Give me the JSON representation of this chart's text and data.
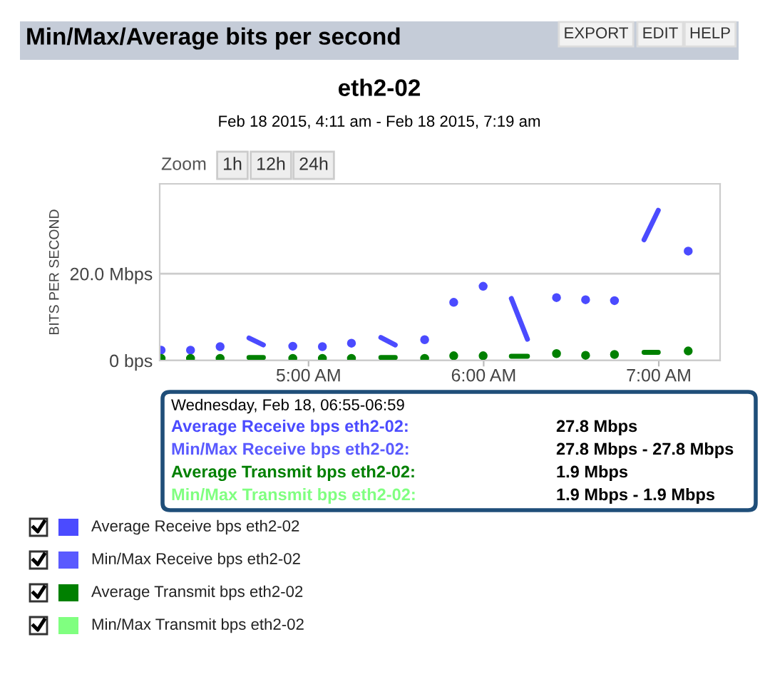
{
  "chart_data": {
    "type": "line",
    "title": "Min/Max/Average bits per second",
    "subtitle": "eth2-02",
    "ylabel": "BITS PER SECOND",
    "annotations": [
      "Feb 18 2015, 4:11 am - Feb 18 2015, 7:19 am",
      "Zoom",
      "1h",
      "12h",
      "24h",
      "EXPORT",
      "EDIT",
      "HELP",
      "Wednesday, Feb 18, 06:55-06:59",
      "Average Receive bps eth2-02:",
      "27.8 Mbps",
      "Min/Max Receive bps eth2-02:",
      "27.8 Mbps - 27.8 Mbps",
      "Average Transmit bps eth2-02:",
      "1.9 Mbps",
      "Min/Max Transmit bps eth2-02:",
      "1.9 Mbps - 1.9 Mbps"
    ],
    "x": [
      4.158,
      4.242,
      4.326,
      4.41,
      4.495,
      4.578,
      4.66,
      4.742,
      4.826,
      4.91,
      4.995,
      5.079,
      5.162,
      5.245,
      5.329,
      5.413,
      5.495,
      5.579,
      5.663,
      5.746,
      5.829,
      5.913,
      5.997,
      6.077,
      6.158,
      6.25,
      6.333,
      6.416,
      6.499,
      6.582,
      6.665,
      6.747,
      6.832,
      6.916,
      6.997,
      7.082,
      7.168
    ],
    "series": [
      {
        "name": "Average Receive bps eth2-02",
        "color": "#4b4bff",
        "values": [
          2.4,
          null,
          2.4,
          null,
          3.2,
          null,
          5.2,
          3.6,
          null,
          3.3,
          null,
          3.2,
          null,
          4.0,
          null,
          5.3,
          3.6,
          null,
          4.8,
          null,
          13.4,
          null,
          17.1,
          null,
          14.3,
          4.9,
          null,
          14.5,
          null,
          14.0,
          null,
          13.8,
          null,
          27.8,
          34.6,
          null,
          25.2
        ]
      },
      {
        "name": "Min/Max Receive bps eth2-02",
        "color": "#5a5aff",
        "values": [
          null,
          null,
          null,
          null,
          null,
          null,
          null,
          null,
          null,
          null,
          null,
          null,
          null,
          null,
          null,
          null,
          null,
          null,
          null,
          null,
          null,
          null,
          null,
          null,
          null,
          null,
          null,
          null,
          null,
          null,
          null,
          null,
          null,
          null,
          null,
          null,
          null
        ]
      },
      {
        "name": "Average Transmit bps eth2-02",
        "color": "#008000",
        "values": [
          0.5,
          null,
          0.5,
          null,
          0.5,
          null,
          0.7,
          0.7,
          null,
          0.5,
          null,
          0.5,
          null,
          0.5,
          null,
          0.7,
          0.7,
          null,
          0.5,
          null,
          1.1,
          null,
          1.1,
          null,
          1.0,
          1.0,
          null,
          1.6,
          null,
          1.2,
          null,
          1.4,
          null,
          1.9,
          1.9,
          null,
          2.2
        ]
      },
      {
        "name": "Min/Max Transmit bps eth2-02",
        "color": "#80ff80",
        "values": [
          null,
          null,
          null,
          null,
          null,
          null,
          null,
          null,
          null,
          null,
          null,
          null,
          null,
          null,
          null,
          null,
          null,
          null,
          null,
          null,
          null,
          null,
          null,
          null,
          null,
          null,
          null,
          null,
          null,
          null,
          null,
          null,
          null,
          null,
          null,
          null,
          null
        ]
      }
    ],
    "xlim": [
      4.15,
      7.35
    ],
    "xticks": [
      {
        "value": 5,
        "label": "5:00 AM"
      },
      {
        "value": 6,
        "label": "6:00 AM"
      },
      {
        "value": 7,
        "label": "7:00 AM"
      }
    ],
    "ylim": [
      0,
      40.7
    ],
    "yticks": [
      {
        "value": 0,
        "label": "0 bps"
      },
      {
        "value": 20,
        "label": "20.0 Mbps"
      }
    ],
    "grid": "y",
    "legend": "bottom",
    "marker": "circle",
    "line_style": "solid"
  }
}
